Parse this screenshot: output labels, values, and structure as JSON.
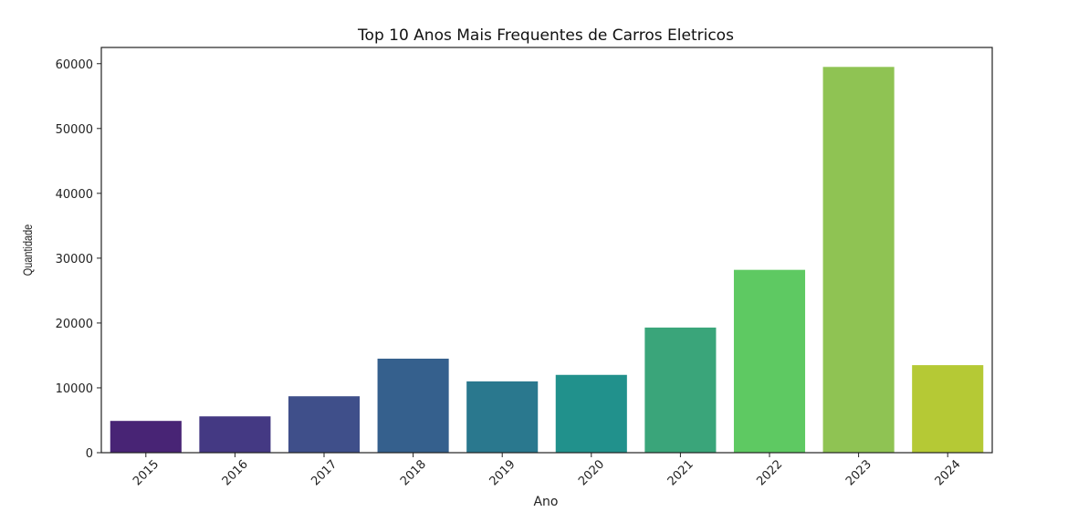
{
  "chart_data": {
    "type": "bar",
    "title": "Top 10 Anos Mais Frequentes de Carros Eletricos",
    "xlabel": "Ano",
    "ylabel": "Quantidade",
    "categories": [
      "2015",
      "2016",
      "2017",
      "2018",
      "2019",
      "2020",
      "2021",
      "2022",
      "2023",
      "2024"
    ],
    "values": [
      4900,
      5600,
      8700,
      14500,
      11000,
      12000,
      19300,
      28200,
      59500,
      13500
    ],
    "colors": [
      "#482475",
      "#443983",
      "#3f4f8a",
      "#35608d",
      "#2a788e",
      "#21918c",
      "#3aa57a",
      "#5ec962",
      "#8fc353",
      "#b5c935"
    ],
    "ylim": [
      0,
      62500
    ],
    "yticks": [
      0,
      10000,
      20000,
      30000,
      40000,
      50000,
      60000
    ],
    "grid": false,
    "xtick_rotation": 45
  }
}
